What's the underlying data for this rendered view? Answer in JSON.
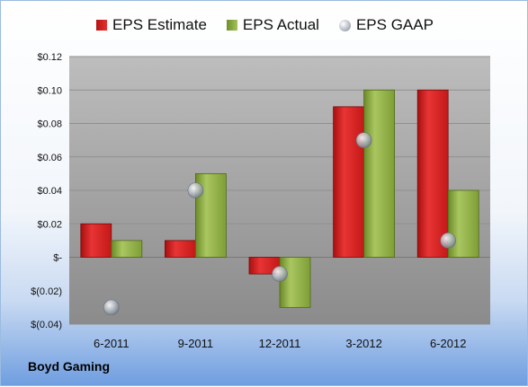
{
  "company": "Boyd Gaming",
  "colors": {
    "estimate": "#d62020",
    "actual": "#8cac42",
    "gaap": "#a0a6ae",
    "plot_bg_top": "#b7b7b7",
    "plot_bg_bottom": "#8a8a8a"
  },
  "legend": [
    {
      "key": "estimate",
      "label": "EPS Estimate"
    },
    {
      "key": "actual",
      "label": "EPS Actual"
    },
    {
      "key": "gaap",
      "label": "EPS GAAP"
    }
  ],
  "chart_data": {
    "type": "bar",
    "categories": [
      "6-2011",
      "9-2011",
      "12-2011",
      "3-2012",
      "6-2012"
    ],
    "series": [
      {
        "name": "EPS Estimate",
        "values": [
          0.02,
          0.01,
          -0.01,
          0.09,
          0.1
        ]
      },
      {
        "name": "EPS Actual",
        "values": [
          0.01,
          0.05,
          -0.03,
          0.1,
          0.04
        ]
      },
      {
        "name": "EPS GAAP",
        "values": [
          -0.03,
          0.04,
          -0.01,
          0.07,
          0.01
        ]
      }
    ],
    "y_ticks": [
      0.12,
      0.1,
      0.08,
      0.06,
      0.04,
      0.02,
      0,
      -0.02,
      -0.04
    ],
    "y_tick_labels": [
      "$0.12",
      "$0.10",
      "$0.08",
      "$0.06",
      "$0.04",
      "$0.02",
      "$-",
      "$(0.02)",
      "$(0.04)"
    ],
    "ylim": [
      -0.04,
      0.12
    ],
    "grid": true,
    "legend_position": "top"
  }
}
